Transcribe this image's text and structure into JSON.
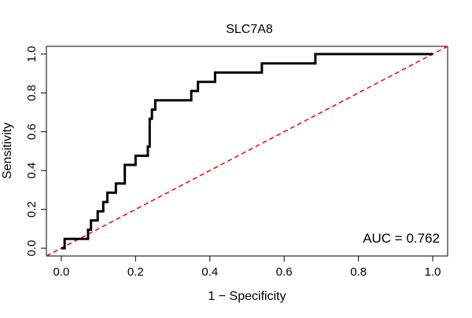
{
  "chart_data": {
    "type": "line",
    "title": "SLC7A8",
    "xlabel": "1 − Specificity",
    "ylabel": "Sensitivity",
    "xlim": [
      -0.04,
      1.04
    ],
    "ylim": [
      -0.04,
      1.04
    ],
    "x_ticks": [
      0.0,
      0.2,
      0.4,
      0.6,
      0.8,
      1.0
    ],
    "x_tick_labels": [
      "0.0",
      "0.2",
      "0.4",
      "0.6",
      "0.8",
      "1.0"
    ],
    "y_ticks": [
      0.0,
      0.2,
      0.4,
      0.6,
      0.8,
      1.0
    ],
    "y_tick_labels": [
      "0.0",
      "0.2",
      "0.4",
      "0.6",
      "0.8",
      "1.0"
    ],
    "grid": false,
    "annotation": "AUC = 0.762",
    "series": [
      {
        "color": "#000000",
        "style": "solid",
        "x": [
          0.0,
          0.009,
          0.009,
          0.072,
          0.072,
          0.08,
          0.08,
          0.098,
          0.098,
          0.113,
          0.113,
          0.124,
          0.124,
          0.147,
          0.147,
          0.171,
          0.171,
          0.2,
          0.2,
          0.233,
          0.233,
          0.238,
          0.238,
          0.244,
          0.244,
          0.253,
          0.253,
          0.35,
          0.35,
          0.368,
          0.368,
          0.414,
          0.414,
          0.54,
          0.54,
          0.684,
          0.684,
          1.0
        ],
        "y": [
          0.0,
          0.0,
          0.048,
          0.048,
          0.095,
          0.095,
          0.143,
          0.143,
          0.19,
          0.19,
          0.238,
          0.238,
          0.286,
          0.286,
          0.333,
          0.333,
          0.429,
          0.429,
          0.476,
          0.476,
          0.524,
          0.524,
          0.667,
          0.667,
          0.714,
          0.714,
          0.762,
          0.762,
          0.81,
          0.81,
          0.857,
          0.857,
          0.905,
          0.905,
          0.952,
          0.952,
          1.0,
          1.0
        ]
      },
      {
        "color": "#ff0000",
        "style": "dashed",
        "x": [
          -0.04,
          1.04
        ],
        "y": [
          -0.04,
          1.04
        ]
      }
    ]
  }
}
